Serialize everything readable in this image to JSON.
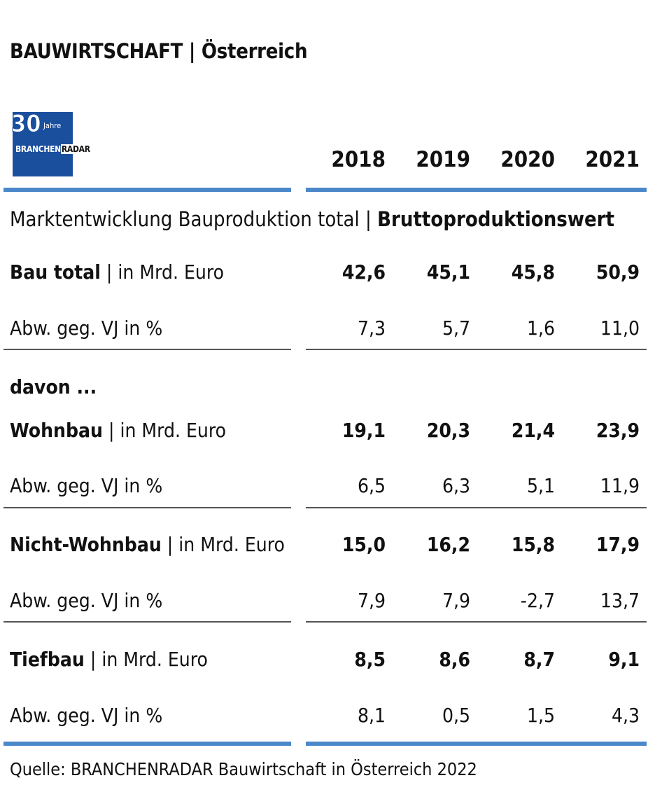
{
  "title": "BAUWIRTSCHAFT | Österreich",
  "logo": {
    "number": "30",
    "jahre": "Jahre",
    "brand_left": "BRANCHEN",
    "brand_right": "RADAR"
  },
  "subtitle": {
    "regular": "Marktentwicklung Bauproduktion total | ",
    "bold": "Bruttoproduktionswert"
  },
  "source": "Quelle: BRANCHENRADAR Bauwirtschaft in Österreich 2022",
  "colors": {
    "accent_rule": "#4a88c9",
    "logo_bg": "#1a4f9e"
  },
  "chart_data": {
    "type": "table",
    "columns": [
      "2018",
      "2019",
      "2020",
      "2021"
    ],
    "davon_label": "davon ...",
    "rows": [
      {
        "category": "Bau total",
        "unit": "| in Mrd. Euro",
        "values": [
          "42,6",
          "45,1",
          "45,8",
          "50,9"
        ]
      },
      {
        "category": "",
        "unit": "Abw. geg. VJ in %",
        "values": [
          "7,3",
          "5,7",
          "1,6",
          "11,0"
        ]
      },
      {
        "category": "Wohnbau",
        "unit": "| in Mrd. Euro",
        "values": [
          "19,1",
          "20,3",
          "21,4",
          "23,9"
        ]
      },
      {
        "category": "",
        "unit": "Abw. geg. VJ in %",
        "values": [
          "6,5",
          "6,3",
          "5,1",
          "11,9"
        ]
      },
      {
        "category": "Nicht-Wohnbau",
        "unit": "| in Mrd. Euro",
        "values": [
          "15,0",
          "16,2",
          "15,8",
          "17,9"
        ]
      },
      {
        "category": "",
        "unit": "Abw. geg. VJ in %",
        "values": [
          "7,9",
          "7,9",
          "-2,7",
          "13,7"
        ]
      },
      {
        "category": "Tiefbau",
        "unit": "| in Mrd. Euro",
        "values": [
          "8,5",
          "8,6",
          "8,7",
          "9,1"
        ]
      },
      {
        "category": "",
        "unit": "Abw. geg. VJ in %",
        "values": [
          "8,1",
          "0,5",
          "1,5",
          "4,3"
        ]
      }
    ]
  }
}
